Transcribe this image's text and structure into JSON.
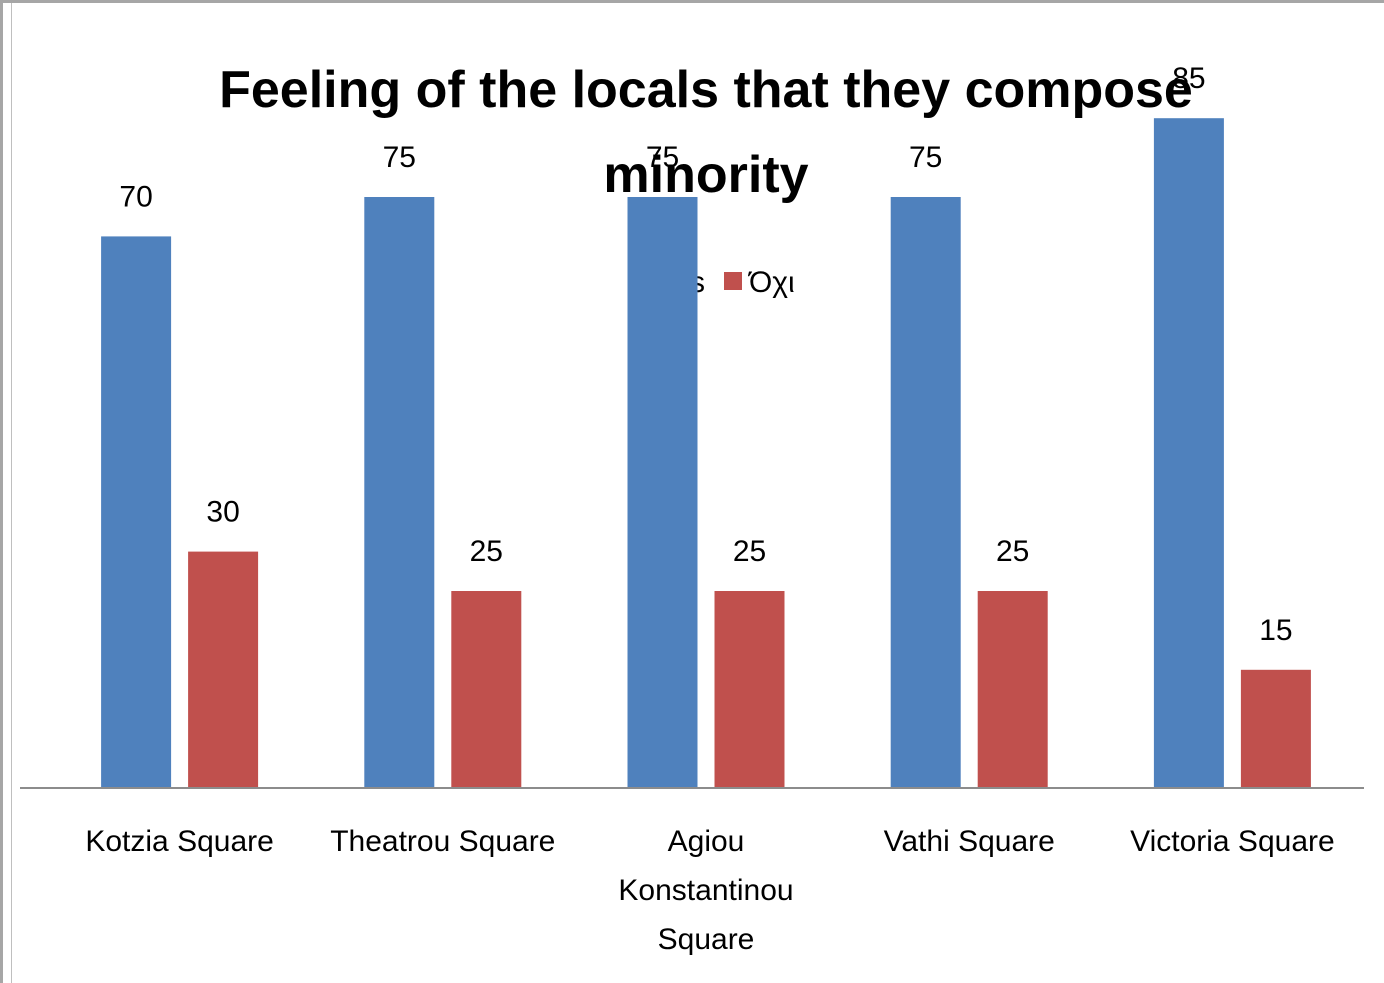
{
  "chart_data": {
    "type": "bar",
    "title_lines": [
      "Feeling of the locals that they compose",
      "minority"
    ],
    "categories": [
      [
        "Kotzia Square"
      ],
      [
        "Theatrou Square"
      ],
      [
        "Agiou",
        "Konstantinou",
        "Square"
      ],
      [
        "Vathi Square"
      ],
      [
        "Victoria Square"
      ]
    ],
    "series": [
      {
        "name": "Yes",
        "color": "#4f81bd",
        "values": [
          70,
          75,
          75,
          75,
          85
        ]
      },
      {
        "name": "Όχι",
        "color": "#c0504d",
        "values": [
          30,
          25,
          25,
          25,
          15
        ]
      }
    ],
    "ylim": [
      0,
      100
    ],
    "grid": false,
    "legend_position": "top"
  }
}
